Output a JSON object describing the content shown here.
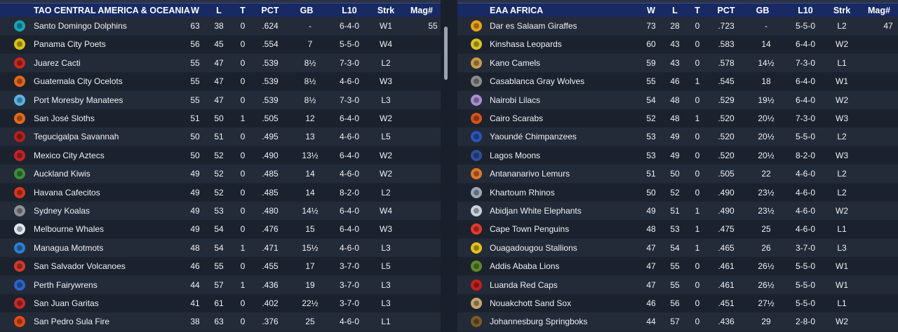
{
  "left": {
    "division": "TAO CENTRAL AMERICA & OCEANIA",
    "headers": {
      "w": "W",
      "l": "L",
      "t": "T",
      "pct": "PCT",
      "gb": "GB",
      "l10": "L10",
      "strk": "Strk",
      "mag": "Mag#"
    },
    "rows": [
      {
        "team": "Santo Domingo Dolphins",
        "w": "63",
        "l": "38",
        "t": "0",
        "pct": ".624",
        "gb": "-",
        "l10": "6-4-0",
        "strk": "W1",
        "mag": "55",
        "color": "#1aa3b8"
      },
      {
        "team": "Panama City Poets",
        "w": "56",
        "l": "45",
        "t": "0",
        "pct": ".554",
        "gb": "7",
        "l10": "5-5-0",
        "strk": "W4",
        "mag": "",
        "color": "#d9c21a"
      },
      {
        "team": "Juarez Cacti",
        "w": "55",
        "l": "47",
        "t": "0",
        "pct": ".539",
        "gb": "8½",
        "l10": "7-3-0",
        "strk": "L2",
        "mag": "",
        "color": "#c8281e"
      },
      {
        "team": "Guatemala City Ocelots",
        "w": "55",
        "l": "47",
        "t": "0",
        "pct": ".539",
        "gb": "8½",
        "l10": "4-6-0",
        "strk": "W3",
        "mag": "",
        "color": "#e0661c"
      },
      {
        "team": "Port Moresby Manatees",
        "w": "55",
        "l": "47",
        "t": "0",
        "pct": ".539",
        "gb": "8½",
        "l10": "7-3-0",
        "strk": "L3",
        "mag": "",
        "color": "#5ab4e6"
      },
      {
        "team": "San José Sloths",
        "w": "51",
        "l": "50",
        "t": "1",
        "pct": ".505",
        "gb": "12",
        "l10": "6-4-0",
        "strk": "W2",
        "mag": "",
        "color": "#e26a1a"
      },
      {
        "team": "Tegucigalpa Savannah",
        "w": "50",
        "l": "51",
        "t": "0",
        "pct": ".495",
        "gb": "13",
        "l10": "4-6-0",
        "strk": "L5",
        "mag": "",
        "color": "#b3201c"
      },
      {
        "team": "Mexico City Aztecs",
        "w": "50",
        "l": "52",
        "t": "0",
        "pct": ".490",
        "gb": "13½",
        "l10": "6-4-0",
        "strk": "W2",
        "mag": "",
        "color": "#c22328"
      },
      {
        "team": "Auckland Kiwis",
        "w": "49",
        "l": "52",
        "t": "0",
        "pct": ".485",
        "gb": "14",
        "l10": "4-6-0",
        "strk": "W2",
        "mag": "",
        "color": "#3e8a3a"
      },
      {
        "team": "Havana Cafecitos",
        "w": "49",
        "l": "52",
        "t": "0",
        "pct": ".485",
        "gb": "14",
        "l10": "8-2-0",
        "strk": "L2",
        "mag": "",
        "color": "#d8361c"
      },
      {
        "team": "Sydney Koalas",
        "w": "49",
        "l": "53",
        "t": "0",
        "pct": ".480",
        "gb": "14½",
        "l10": "6-4-0",
        "strk": "W4",
        "mag": "",
        "color": "#8e9096"
      },
      {
        "team": "Melbourne Whales",
        "w": "49",
        "l": "54",
        "t": "0",
        "pct": ".476",
        "gb": "15",
        "l10": "6-4-0",
        "strk": "W3",
        "mag": "",
        "color": "#dfe6f0"
      },
      {
        "team": "Managua Motmots",
        "w": "48",
        "l": "54",
        "t": "1",
        "pct": ".471",
        "gb": "15½",
        "l10": "4-6-0",
        "strk": "L3",
        "mag": "",
        "color": "#2c7fd0"
      },
      {
        "team": "San Salvador Volcanoes",
        "w": "46",
        "l": "55",
        "t": "0",
        "pct": ".455",
        "gb": "17",
        "l10": "3-7-0",
        "strk": "L5",
        "mag": "",
        "color": "#d23a2a"
      },
      {
        "team": "Perth Fairywrens",
        "w": "44",
        "l": "57",
        "t": "1",
        "pct": ".436",
        "gb": "19",
        "l10": "3-7-0",
        "strk": "L3",
        "mag": "",
        "color": "#2b63c9"
      },
      {
        "team": "San Juan Garitas",
        "w": "41",
        "l": "61",
        "t": "0",
        "pct": ".402",
        "gb": "22½",
        "l10": "3-7-0",
        "strk": "L3",
        "mag": "",
        "color": "#c62a2a"
      },
      {
        "team": "San Pedro Sula Fire",
        "w": "38",
        "l": "63",
        "t": "0",
        "pct": ".376",
        "gb": "25",
        "l10": "4-6-0",
        "strk": "L1",
        "mag": "",
        "color": "#e24a14"
      }
    ]
  },
  "right": {
    "division": "EAA AFRICA",
    "headers": {
      "w": "W",
      "l": "L",
      "t": "T",
      "pct": "PCT",
      "gb": "GB",
      "l10": "L10",
      "strk": "Strk",
      "mag": "Mag#"
    },
    "rows": [
      {
        "team": "Dar es Salaam Giraffes",
        "w": "73",
        "l": "28",
        "t": "0",
        "pct": ".723",
        "gb": "-",
        "l10": "5-5-0",
        "strk": "L2",
        "mag": "47",
        "color": "#e8a21a"
      },
      {
        "team": "Kinshasa Leopards",
        "w": "60",
        "l": "43",
        "t": "0",
        "pct": ".583",
        "gb": "14",
        "l10": "6-4-0",
        "strk": "W2",
        "mag": "",
        "color": "#d8c428"
      },
      {
        "team": "Kano Camels",
        "w": "59",
        "l": "43",
        "t": "0",
        "pct": ".578",
        "gb": "14½",
        "l10": "7-3-0",
        "strk": "L1",
        "mag": "",
        "color": "#c99a4e"
      },
      {
        "team": "Casablanca Gray Wolves",
        "w": "55",
        "l": "46",
        "t": "1",
        "pct": ".545",
        "gb": "18",
        "l10": "6-4-0",
        "strk": "W1",
        "mag": "",
        "color": "#8c8c8c"
      },
      {
        "team": "Nairobi Lilacs",
        "w": "54",
        "l": "48",
        "t": "0",
        "pct": ".529",
        "gb": "19½",
        "l10": "6-4-0",
        "strk": "W2",
        "mag": "",
        "color": "#a98fd1"
      },
      {
        "team": "Cairo Scarabs",
        "w": "52",
        "l": "48",
        "t": "1",
        "pct": ".520",
        "gb": "20½",
        "l10": "7-3-0",
        "strk": "W3",
        "mag": "",
        "color": "#d2541c"
      },
      {
        "team": "Yaoundé Chimpanzees",
        "w": "53",
        "l": "49",
        "t": "0",
        "pct": ".520",
        "gb": "20½",
        "l10": "5-5-0",
        "strk": "L2",
        "mag": "",
        "color": "#2a55b8"
      },
      {
        "team": "Lagos Moons",
        "w": "53",
        "l": "49",
        "t": "0",
        "pct": ".520",
        "gb": "20½",
        "l10": "8-2-0",
        "strk": "W3",
        "mag": "",
        "color": "#2d4f9c"
      },
      {
        "team": "Antananarivo Lemurs",
        "w": "51",
        "l": "50",
        "t": "0",
        "pct": ".505",
        "gb": "22",
        "l10": "4-6-0",
        "strk": "L2",
        "mag": "",
        "color": "#e0762a"
      },
      {
        "team": "Khartoum Rhinos",
        "w": "50",
        "l": "52",
        "t": "0",
        "pct": ".490",
        "gb": "23½",
        "l10": "4-6-0",
        "strk": "L2",
        "mag": "",
        "color": "#9aa6b8"
      },
      {
        "team": "Abidjan White Elephants",
        "w": "49",
        "l": "51",
        "t": "1",
        "pct": ".490",
        "gb": "23½",
        "l10": "4-6-0",
        "strk": "W2",
        "mag": "",
        "color": "#c9d2dc"
      },
      {
        "team": "Cape Town Penguins",
        "w": "48",
        "l": "53",
        "t": "1",
        "pct": ".475",
        "gb": "25",
        "l10": "4-6-0",
        "strk": "L1",
        "mag": "",
        "color": "#e23a2a"
      },
      {
        "team": "Ouagadougou Stallions",
        "w": "47",
        "l": "54",
        "t": "1",
        "pct": ".465",
        "gb": "26",
        "l10": "3-7-0",
        "strk": "L3",
        "mag": "",
        "color": "#e2c21c"
      },
      {
        "team": "Addis Ababa Lions",
        "w": "47",
        "l": "55",
        "t": "0",
        "pct": ".461",
        "gb": "26½",
        "l10": "5-5-0",
        "strk": "W1",
        "mag": "",
        "color": "#5e8a2a"
      },
      {
        "team": "Luanda Red Caps",
        "w": "47",
        "l": "55",
        "t": "0",
        "pct": ".461",
        "gb": "26½",
        "l10": "5-5-0",
        "strk": "W1",
        "mag": "",
        "color": "#c51f1f"
      },
      {
        "team": "Nouakchott Sand Sox",
        "w": "46",
        "l": "56",
        "t": "0",
        "pct": ".451",
        "gb": "27½",
        "l10": "5-5-0",
        "strk": "L1",
        "mag": "",
        "color": "#c6a56e"
      },
      {
        "team": "Johannesburg Springboks",
        "w": "44",
        "l": "57",
        "t": "0",
        "pct": ".436",
        "gb": "29",
        "l10": "2-8-0",
        "strk": "W2",
        "mag": "",
        "color": "#7a5a2a"
      }
    ]
  }
}
